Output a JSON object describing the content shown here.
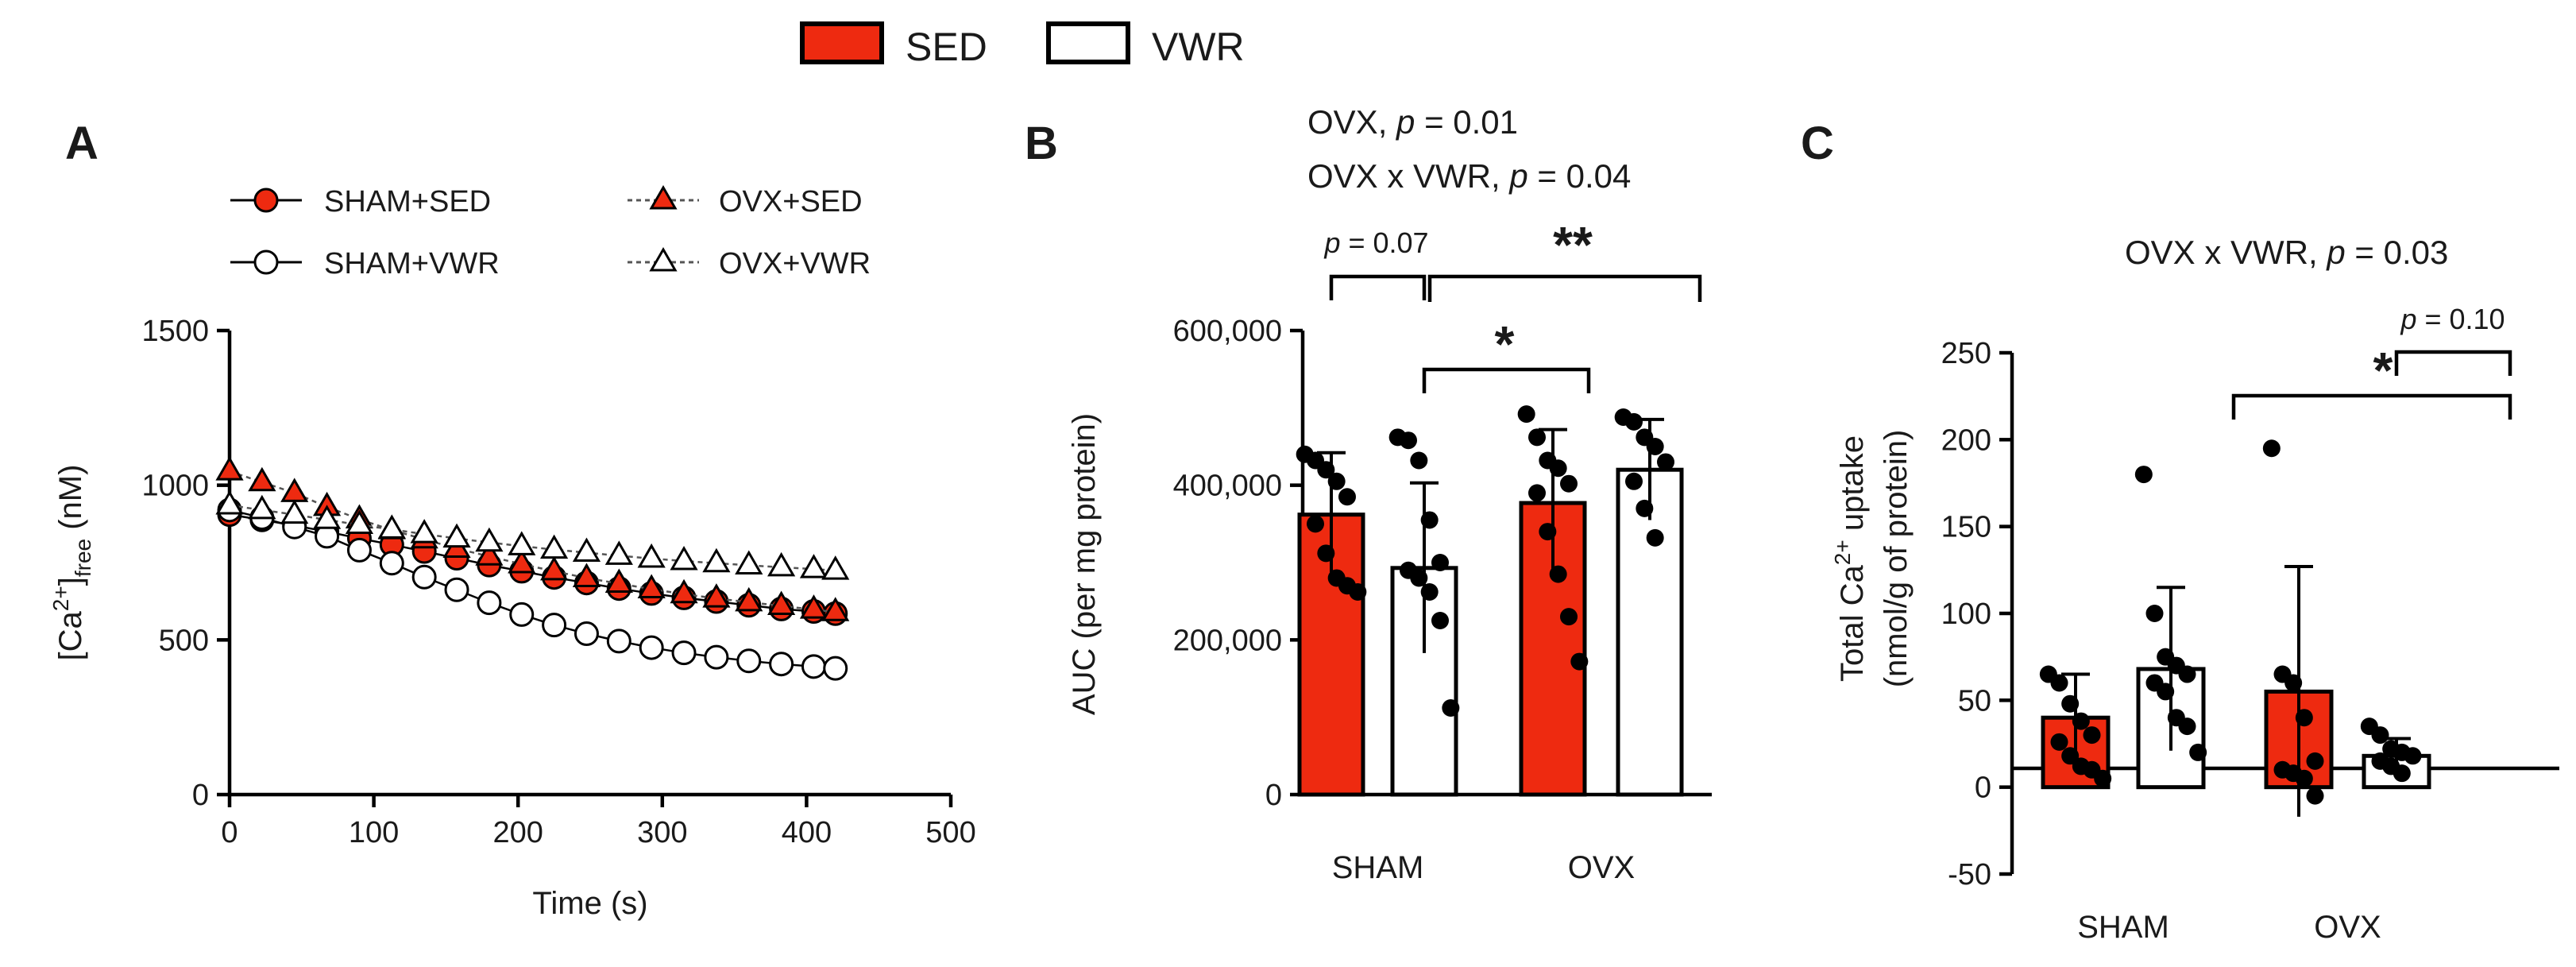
{
  "top_legend": [
    {
      "label": "SED",
      "color": "#ee2a10"
    },
    {
      "label": "VWR",
      "color": "#ffffff"
    }
  ],
  "colors": {
    "sed": "#ee2a10",
    "vwr": "#ffffff",
    "ink": "#000000"
  },
  "chart_data": [
    {
      "panel": "A",
      "type": "line",
      "title": "",
      "xlabel": "Time (s)",
      "ylabel_main": "[Ca",
      "ylabel_sup": "2+",
      "ylabel_close": "]",
      "ylabel_sub": "free",
      "ylabel_unit": " (nM)",
      "xlim": [
        0,
        500
      ],
      "ylim": [
        0,
        1500
      ],
      "xticks": [
        "0",
        "100",
        "200",
        "300",
        "400",
        "500"
      ],
      "yticks": [
        "0",
        "500",
        "1000",
        "1500"
      ],
      "x": [
        0,
        22.5,
        45,
        67.5,
        90,
        112.5,
        135,
        157.5,
        180,
        202.5,
        225,
        247.5,
        270,
        292.5,
        315,
        337.5,
        360,
        382.5,
        405,
        420
      ],
      "series": [
        {
          "name": "SHAM+SED",
          "marker": "circle",
          "fill": "sed",
          "dashed": false,
          "values": [
            905,
            888,
            870,
            850,
            828,
            808,
            786,
            764,
            742,
            722,
            702,
            684,
            666,
            650,
            636,
            624,
            612,
            600,
            592,
            585
          ]
        },
        {
          "name": "OVX+SED",
          "marker": "triangle",
          "fill": "sed",
          "dashed": true,
          "values": [
            1045,
            1010,
            975,
            930,
            890,
            855,
            825,
            795,
            770,
            745,
            722,
            700,
            682,
            664,
            648,
            634,
            622,
            610,
            598,
            590
          ]
        },
        {
          "name": "SHAM+VWR",
          "marker": "circle",
          "fill": "vwr",
          "dashed": false,
          "values": [
            920,
            895,
            865,
            835,
            790,
            748,
            703,
            662,
            620,
            582,
            548,
            520,
            496,
            475,
            458,
            444,
            432,
            422,
            414,
            408
          ]
        },
        {
          "name": "OVX+VWR",
          "marker": "triangle",
          "fill": "vwr",
          "dashed": true,
          "values": [
            935,
            920,
            905,
            888,
            872,
            857,
            842,
            828,
            815,
            803,
            792,
            782,
            772,
            763,
            755,
            748,
            741,
            735,
            729,
            724
          ]
        }
      ]
    },
    {
      "panel": "B",
      "type": "bar",
      "stats": [
        "OVX, ",
        "p",
        " = 0.01",
        "OVX x VWR, ",
        "p",
        " = 0.04"
      ],
      "ylabel": "AUC (per mg protein)",
      "ylim": [
        0,
        600000
      ],
      "yticks": [
        "0",
        "200,000",
        "400,000",
        "600,000"
      ],
      "yticks_values": [
        0,
        200000,
        400000,
        600000
      ],
      "categories": [
        "SHAM",
        "OVX"
      ],
      "series": [
        {
          "name": "SED",
          "fill": "sed",
          "values": [
            362000,
            377000
          ],
          "sd": [
            80000,
            95000
          ]
        },
        {
          "name": "VWR",
          "fill": "vwr",
          "values": [
            293000,
            420000
          ],
          "sd": [
            110000,
            65000
          ]
        }
      ],
      "points": [
        [
          440000,
          432000,
          420000,
          405000,
          385000,
          350000,
          312000,
          280000,
          270000,
          262000
        ],
        [
          462000,
          458000,
          432000,
          355000,
          300000,
          290000,
          280000,
          262000,
          225000,
          112000
        ],
        [
          492000,
          462000,
          432000,
          422000,
          402000,
          390000,
          340000,
          285000,
          230000,
          172000
        ],
        [
          488000,
          482000,
          462000,
          450000,
          430000,
          405000,
          370000,
          332000
        ]
      ],
      "annotations": [
        {
          "p_text": "p",
          "rest": " = 0.07"
        },
        {
          "star": "**"
        },
        {
          "star": "*"
        }
      ]
    },
    {
      "panel": "C",
      "type": "bar",
      "stats": [
        "OVX x VWR, ",
        "p",
        " = 0.03"
      ],
      "ylabel_line1_pre": "Total Ca",
      "ylabel_line1_sup": "2+",
      "ylabel_line1_post": " uptake",
      "ylabel_line2": "(nmol/g of protein)",
      "ylim": [
        -50,
        250
      ],
      "yticks": [
        "-50",
        "0",
        "50",
        "100",
        "150",
        "200",
        "250"
      ],
      "yticks_values": [
        -50,
        0,
        50,
        100,
        150,
        200,
        250
      ],
      "categories": [
        "SHAM",
        "OVX"
      ],
      "series": [
        {
          "name": "SED",
          "fill": "sed",
          "values": [
            40,
            55
          ],
          "sd": [
            25,
            72
          ]
        },
        {
          "name": "VWR",
          "fill": "vwr",
          "values": [
            68,
            18
          ],
          "sd": [
            47,
            10
          ]
        }
      ],
      "points": [
        [
          65,
          60,
          48,
          38,
          30,
          26,
          18,
          12,
          10,
          5
        ],
        [
          180,
          100,
          75,
          70,
          65,
          60,
          55,
          40,
          35,
          20
        ],
        [
          195,
          65,
          60,
          40,
          15,
          10,
          8,
          5,
          -5
        ],
        [
          35,
          30,
          22,
          20,
          18,
          15,
          12,
          8
        ]
      ],
      "annotations": [
        {
          "star": "*"
        },
        {
          "p_text": "p",
          "rest": " = 0.10"
        }
      ]
    }
  ]
}
